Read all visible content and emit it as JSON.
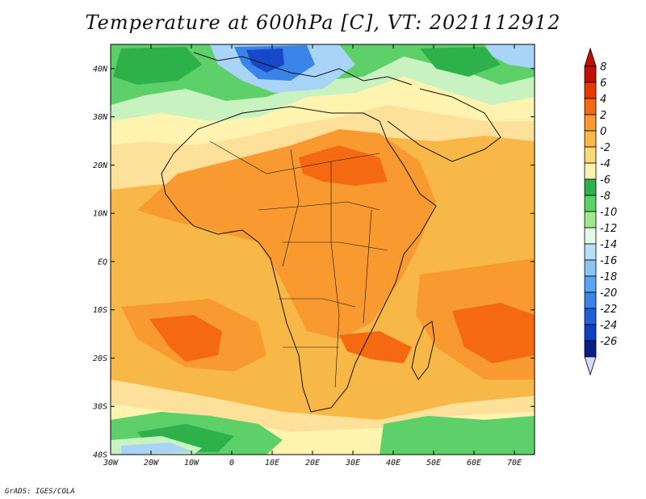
{
  "title": "Temperature at 600hPa [C], VT: 2021112912",
  "credit": "GrADS: IGES/COLA",
  "map": {
    "lat_labels": [
      "40N",
      "30N",
      "20N",
      "10N",
      "EQ",
      "10S",
      "20S",
      "30S",
      "40S"
    ],
    "lon_labels": [
      "30W",
      "20W",
      "10W",
      "0",
      "10E",
      "20E",
      "30E",
      "40E",
      "50E",
      "60E",
      "70E"
    ],
    "lon_range": [
      -30,
      75
    ],
    "lat_range": [
      -40,
      45
    ]
  },
  "colorbar": {
    "labels": [
      "8",
      "6",
      "4",
      "2",
      "0",
      "-2",
      "-4",
      "-6",
      "-8",
      "-10",
      "-12",
      "-14",
      "-16",
      "-18",
      "-20",
      "-22",
      "-24",
      "-26"
    ],
    "colors": [
      "#c01000",
      "#e83a00",
      "#f56a10",
      "#f89a30",
      "#f8b848",
      "#f8d878",
      "#fff3b0",
      "#2eb04a",
      "#5ed06a",
      "#9ee88e",
      "#e4fae8",
      "#b8def8",
      "#88c4f4",
      "#5aa4f0",
      "#3a84e8",
      "#2060d8",
      "#0e40c0",
      "#0a1f80"
    ],
    "below_color": "#d8d8ff"
  },
  "palette": {
    "warm": "#f8b848",
    "warmer": "#f89a30",
    "hot": "#f56a10",
    "mild": "#fde09a",
    "cool": "#fff3b0",
    "green": "#5ed06a",
    "green_dark": "#2eb04a",
    "pale_green": "#c8f2c0",
    "blue": "#3a84e8",
    "blue_dark": "#1648c8",
    "light_blue": "#a8d4f8"
  }
}
